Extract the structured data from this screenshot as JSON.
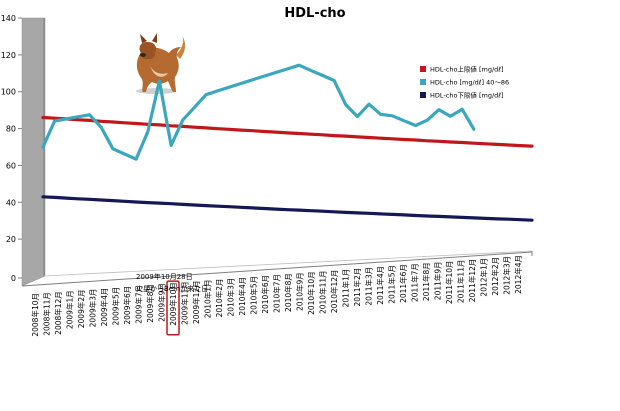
{
  "chart_data": {
    "type": "line",
    "title": "HDL-cho",
    "xlabel": "",
    "ylabel": "",
    "ylim": [
      0,
      140
    ],
    "yticks": [
      0,
      20,
      40,
      60,
      80,
      100,
      120,
      140
    ],
    "grid": false,
    "legend_position": "right",
    "categories": [
      "2008年10月",
      "2008年11月",
      "2008年12月",
      "2009年1月",
      "2009年2月",
      "2009年3月",
      "2009年4月",
      "2009年5月",
      "2009年6月",
      "2009年7月",
      "2009年8月",
      "2009年9月",
      "2009年10月",
      "2009年11月",
      "2009年12月",
      "2010年1月",
      "2010年2月",
      "2010年3月",
      "2010年4月",
      "2010年5月",
      "2010年6月",
      "2010年7月",
      "2010年8月",
      "2010年9月",
      "2010年10月",
      "2010年11月",
      "2010年12月",
      "2011年1月",
      "2011年2月",
      "2011年3月",
      "2011年4月",
      "2011年5月",
      "2011年6月",
      "2011年7月",
      "2011年8月",
      "2011年9月",
      "2011年10月",
      "2011年11月",
      "2011年12月",
      "2012年1月",
      "2012年2月",
      "2012年3月",
      "2012年4月"
    ],
    "series": [
      {
        "name": "HDL-cho上限値 [mg/dℓ]",
        "color": "#c0171b",
        "values": [
          86,
          85.5,
          85,
          84.4,
          83.9,
          83.3,
          82.8,
          82.2,
          81.7,
          81.1,
          80.6,
          80,
          79.5,
          78.9,
          78.4,
          77.8,
          77.3,
          76.7,
          76.2,
          75.6,
          75.1,
          74.5,
          74,
          73.4,
          72.9,
          72.3,
          71.8,
          71.2,
          70.7,
          70.1,
          69.6,
          69,
          68.5,
          67.9,
          67.4,
          66.8,
          66.3,
          65.7,
          65.2,
          64.6,
          64.1,
          63.5,
          63
        ]
      },
      {
        "name": "HDL-cho [mg/dℓ] 40～86",
        "color": "#3ba7bf",
        "values": [
          70,
          84,
          85,
          86,
          87,
          80,
          68,
          65,
          62,
          77,
          105,
          69,
          83,
          90,
          97,
          99,
          101,
          103,
          105,
          107,
          109,
          111,
          113,
          110,
          107,
          104,
          90,
          83,
          90,
          84,
          83,
          80,
          77,
          80,
          86,
          82,
          86,
          74,
          null,
          null,
          null,
          null,
          null
        ]
      },
      {
        "name": "HDL-cho下限値 [mg/dℓ]",
        "color": "#141854",
        "values": [
          43,
          42.4,
          41.8,
          41.2,
          40.7,
          40.1,
          39.5,
          38.9,
          38.3,
          37.7,
          37.2,
          36.6,
          36,
          35.4,
          34.8,
          34.2,
          33.7,
          33.1,
          32.5,
          31.9,
          31.3,
          30.7,
          30.2,
          29.6,
          29,
          28.4,
          27.8,
          27.2,
          26.7,
          26.1,
          25.5,
          24.9,
          24.3,
          23.7,
          23.2,
          22.6,
          22,
          21.4,
          20.8,
          20.2,
          19.7,
          19.1,
          18.5
        ]
      }
    ],
    "annotation": {
      "lines": [
        "2009年10月28日",
        "火星からBethが来た日"
      ],
      "highlight_category": "2009年10月"
    }
  },
  "decor": {
    "photo_icon": "dog-photo",
    "wall_color": "#a7a7a7",
    "axis_color": "#7f7f7f"
  }
}
